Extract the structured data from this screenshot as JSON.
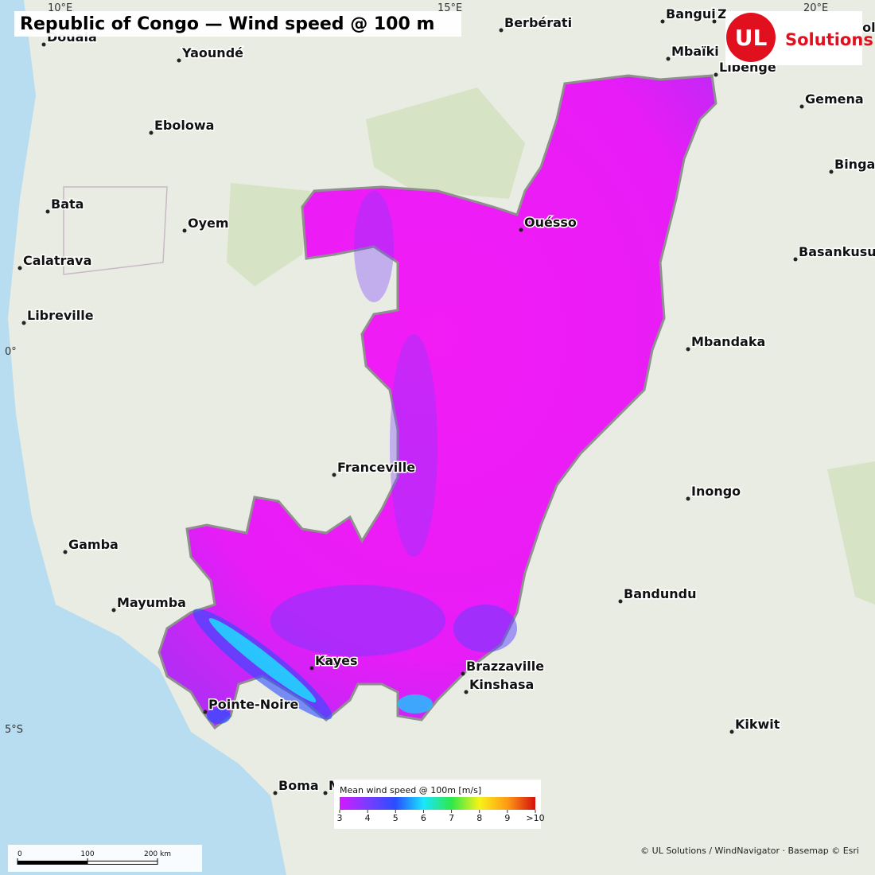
{
  "title": "Republic of Congo — Wind speed @ 100 m",
  "graticule": {
    "lon": [
      "10°E",
      "15°E",
      "20°E"
    ],
    "lat": [
      "0°",
      "5°S"
    ]
  },
  "places": [
    "Douala",
    "Yaoundé",
    "Ebolowa",
    "Bata",
    "Oyem",
    "Calatrava",
    "Libreville",
    "Franceville",
    "Gamba",
    "Mayumba",
    "Kayes",
    "Pointe-Noire",
    "Brazzaville",
    "Kinshasa",
    "Boma",
    "M",
    "Berbérati",
    "Bangui",
    "Z",
    "Bosobolo",
    "Mbaïki",
    "Libenge",
    "Gemena",
    "Binga",
    "Basankusu",
    "Ouésso",
    "Mbandaka",
    "Inongo",
    "Bandundu",
    "Kikwit"
  ],
  "logo": {
    "mark": "UL",
    "text": "Solutions"
  },
  "legend": {
    "title": "Mean wind speed @ 100m  [m/s]",
    "ticks": [
      3,
      4,
      5,
      6,
      7,
      8,
      9,
      {
        "value": 10,
        "label": ">10"
      }
    ],
    "colors": [
      "#d21aff",
      "#7a3cff",
      "#2a4dff",
      "#19e6ff",
      "#2ee84a",
      "#f7f21a",
      "#ff9a14",
      "#d40f0f"
    ]
  },
  "scale_bar": {
    "ticks": [
      0,
      100,
      {
        "value": 200,
        "label": "200 km"
      }
    ]
  },
  "attribution": "© UL Solutions / WindNavigator · Basemap © Esri"
}
